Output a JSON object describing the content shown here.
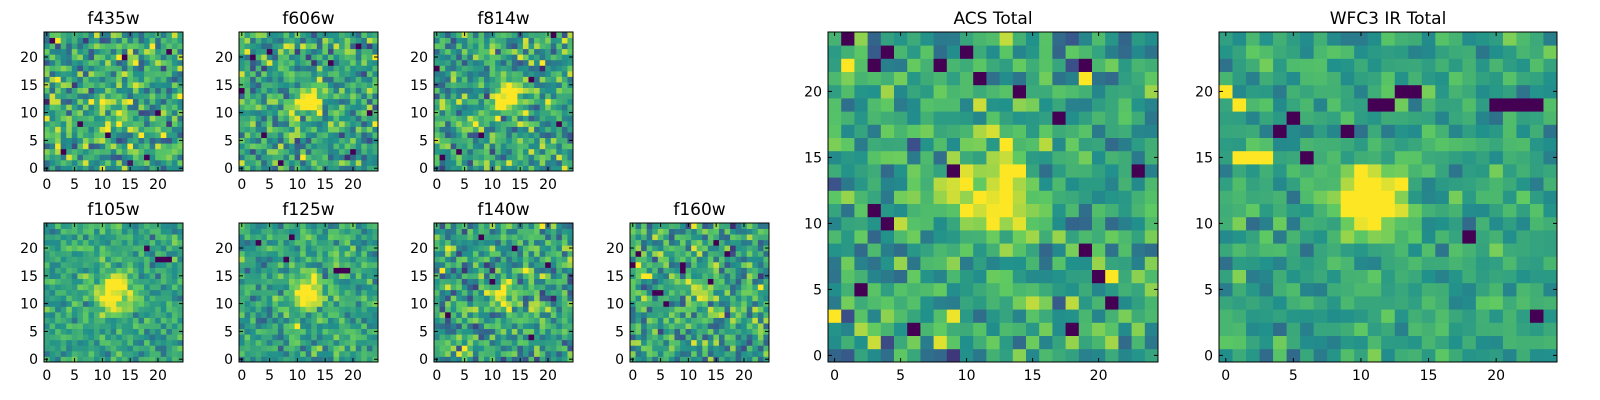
{
  "colormap": [
    "#440154",
    "#3b528b",
    "#21918c",
    "#5ec962",
    "#fde725"
  ],
  "chart_data": [
    {
      "type": "heatmap",
      "title": "f435w",
      "xlim": [
        -0.5,
        24.5
      ],
      "ylim": [
        -0.5,
        24.5
      ],
      "xticks": [
        0,
        5,
        10,
        15,
        20
      ],
      "yticks": [
        0,
        5,
        10,
        15,
        20
      ],
      "grid": false,
      "cmap": "viridis",
      "seed": 11,
      "noise": 0.55,
      "source": {
        "x": 12,
        "y": 12,
        "sigma": 3.0,
        "amp": 0.15
      },
      "dark_pixels": [
        [
          1,
          23
        ],
        [
          14,
          20
        ],
        [
          22,
          21
        ],
        [
          6,
          8
        ],
        [
          3,
          3
        ],
        [
          18,
          2
        ],
        [
          11,
          6
        ],
        [
          20,
          10
        ]
      ],
      "bright_pixels": [
        [
          19,
          22
        ],
        [
          8,
          12
        ],
        [
          15,
          4
        ],
        [
          2,
          16
        ],
        [
          21,
          6
        ]
      ]
    },
    {
      "type": "heatmap",
      "title": "f606w",
      "xlim": [
        -0.5,
        24.5
      ],
      "ylim": [
        -0.5,
        24.5
      ],
      "xticks": [
        0,
        5,
        10,
        15,
        20
      ],
      "yticks": [
        0,
        5,
        10,
        15,
        20
      ],
      "grid": false,
      "cmap": "viridis",
      "seed": 23,
      "noise": 0.5,
      "source": {
        "x": 12,
        "y": 12,
        "sigma": 1.6,
        "amp": 0.6
      },
      "dark_pixels": [
        [
          2,
          20
        ],
        [
          0,
          14
        ],
        [
          5,
          21
        ],
        [
          23,
          10
        ],
        [
          20,
          3
        ],
        [
          7,
          1
        ],
        [
          16,
          19
        ],
        [
          4,
          6
        ],
        [
          21,
          22
        ]
      ],
      "bright_pixels": [
        [
          10,
          12
        ],
        [
          13,
          13
        ]
      ]
    },
    {
      "type": "heatmap",
      "title": "f814w",
      "xlim": [
        -0.5,
        24.5
      ],
      "ylim": [
        -0.5,
        24.5
      ],
      "xticks": [
        0,
        5,
        10,
        15,
        20
      ],
      "yticks": [
        0,
        5,
        10,
        15,
        20
      ],
      "grid": false,
      "cmap": "viridis",
      "seed": 37,
      "noise": 0.5,
      "source": {
        "x": 13,
        "y": 13,
        "sigma": 1.8,
        "amp": 0.6
      },
      "dark_pixels": [
        [
          0,
          18
        ],
        [
          21,
          24
        ],
        [
          4,
          3
        ],
        [
          22,
          8
        ],
        [
          17,
          16
        ],
        [
          8,
          6
        ],
        [
          1,
          2
        ]
      ],
      "bright_pixels": [
        [
          19,
          19
        ]
      ]
    },
    {
      "type": "heatmap",
      "title": "f105w",
      "xlim": [
        -0.5,
        24.5
      ],
      "ylim": [
        -0.5,
        24.5
      ],
      "xticks": [
        0,
        5,
        10,
        15,
        20
      ],
      "yticks": [
        0,
        5,
        10,
        15,
        20
      ],
      "grid": false,
      "cmap": "viridis",
      "seed": 41,
      "noise": 0.3,
      "source": {
        "x": 12,
        "y": 12,
        "sigma": 2.2,
        "amp": 0.6
      },
      "dark_pixels": [
        [
          20,
          18
        ],
        [
          21,
          18
        ],
        [
          22,
          18
        ],
        [
          18,
          20
        ]
      ],
      "bright_pixels": [
        [
          13,
          14
        ]
      ]
    },
    {
      "type": "heatmap",
      "title": "f125w",
      "xlim": [
        -0.5,
        24.5
      ],
      "ylim": [
        -0.5,
        24.5
      ],
      "xticks": [
        0,
        5,
        10,
        15,
        20
      ],
      "yticks": [
        0,
        5,
        10,
        15,
        20
      ],
      "grid": false,
      "cmap": "viridis",
      "seed": 53,
      "noise": 0.35,
      "source": {
        "x": 12,
        "y": 12,
        "sigma": 1.8,
        "amp": 0.7
      },
      "dark_pixels": [
        [
          3,
          21
        ],
        [
          17,
          16
        ],
        [
          18,
          16
        ],
        [
          19,
          16
        ],
        [
          8,
          18
        ],
        [
          9,
          22
        ]
      ],
      "bright_pixels": [
        [
          11,
          13
        ],
        [
          12,
          13
        ],
        [
          10,
          6
        ]
      ]
    },
    {
      "type": "heatmap",
      "title": "f140w",
      "xlim": [
        -0.5,
        24.5
      ],
      "ylim": [
        -0.5,
        24.5
      ],
      "xticks": [
        0,
        5,
        10,
        15,
        20
      ],
      "yticks": [
        0,
        5,
        10,
        15,
        20
      ],
      "grid": false,
      "cmap": "viridis",
      "seed": 67,
      "noise": 0.5,
      "source": {
        "x": 12,
        "y": 12,
        "sigma": 1.5,
        "amp": 0.5
      },
      "dark_pixels": [
        [
          8,
          22
        ],
        [
          14,
          20
        ],
        [
          20,
          17
        ],
        [
          10,
          14
        ],
        [
          2,
          8
        ],
        [
          17,
          4
        ]
      ],
      "bright_pixels": [
        [
          11,
          12
        ],
        [
          12,
          12
        ],
        [
          1,
          16
        ],
        [
          16,
          16
        ]
      ]
    },
    {
      "type": "heatmap",
      "title": "f160w",
      "xlim": [
        -0.5,
        24.5
      ],
      "ylim": [
        -0.5,
        24.5
      ],
      "xticks": [
        0,
        5,
        10,
        15,
        20
      ],
      "yticks": [
        0,
        5,
        10,
        15,
        20
      ],
      "grid": false,
      "cmap": "viridis",
      "seed": 79,
      "noise": 0.5,
      "source": {
        "x": 12,
        "y": 12,
        "sigma": 1.6,
        "amp": 0.3
      },
      "dark_pixels": [
        [
          1,
          19
        ],
        [
          0,
          17
        ],
        [
          9,
          16
        ],
        [
          9,
          17
        ],
        [
          17,
          19
        ],
        [
          4,
          12
        ],
        [
          5,
          12
        ],
        [
          6,
          10
        ],
        [
          14,
          14
        ],
        [
          15,
          21
        ]
      ],
      "bright_pixels": [
        [
          2,
          15
        ],
        [
          3,
          15
        ],
        [
          1,
          17
        ]
      ]
    },
    {
      "type": "heatmap",
      "title": "ACS Total",
      "xlim": [
        -0.5,
        24.5
      ],
      "ylim": [
        -0.5,
        24.5
      ],
      "xticks": [
        0,
        5,
        10,
        15,
        20
      ],
      "yticks": [
        0,
        5,
        10,
        15,
        20
      ],
      "grid": false,
      "cmap": "viridis",
      "seed": 97,
      "noise": 0.42,
      "source": {
        "x": 12,
        "y": 12,
        "sigma": 2.0,
        "amp": 0.6
      },
      "dark_pixels": [
        [
          1,
          24
        ],
        [
          4,
          23
        ],
        [
          8,
          22
        ],
        [
          10,
          23
        ],
        [
          3,
          22
        ],
        [
          14,
          20
        ],
        [
          19,
          22
        ],
        [
          11,
          21
        ],
        [
          17,
          18
        ],
        [
          3,
          11
        ],
        [
          4,
          10
        ],
        [
          9,
          14
        ],
        [
          2,
          5
        ],
        [
          6,
          2
        ],
        [
          18,
          2
        ],
        [
          20,
          6
        ],
        [
          21,
          4
        ],
        [
          19,
          8
        ],
        [
          23,
          14
        ]
      ],
      "bright_pixels": [
        [
          1,
          22
        ],
        [
          19,
          21
        ],
        [
          21,
          6
        ],
        [
          0,
          3
        ],
        [
          13,
          16
        ]
      ]
    },
    {
      "type": "heatmap",
      "title": "WFC3 IR Total",
      "xlim": [
        -0.5,
        24.5
      ],
      "ylim": [
        -0.5,
        24.5
      ],
      "xticks": [
        0,
        5,
        10,
        15,
        20
      ],
      "yticks": [
        0,
        5,
        10,
        15,
        20
      ],
      "grid": false,
      "cmap": "viridis",
      "seed": 113,
      "noise": 0.28,
      "source": {
        "x": 11,
        "y": 12,
        "sigma": 1.7,
        "amp": 0.7
      },
      "dark_pixels": [
        [
          11,
          19
        ],
        [
          12,
          19
        ],
        [
          13,
          20
        ],
        [
          14,
          20
        ],
        [
          20,
          19
        ],
        [
          21,
          19
        ],
        [
          22,
          19
        ],
        [
          23,
          19
        ],
        [
          4,
          17
        ],
        [
          5,
          18
        ],
        [
          9,
          17
        ],
        [
          6,
          15
        ],
        [
          18,
          9
        ],
        [
          23,
          3
        ]
      ],
      "bright_pixels": [
        [
          0,
          20
        ],
        [
          1,
          19
        ],
        [
          1,
          15
        ],
        [
          2,
          15
        ],
        [
          3,
          15
        ],
        [
          11,
          12
        ],
        [
          12,
          12
        ],
        [
          13,
          13
        ]
      ]
    }
  ]
}
